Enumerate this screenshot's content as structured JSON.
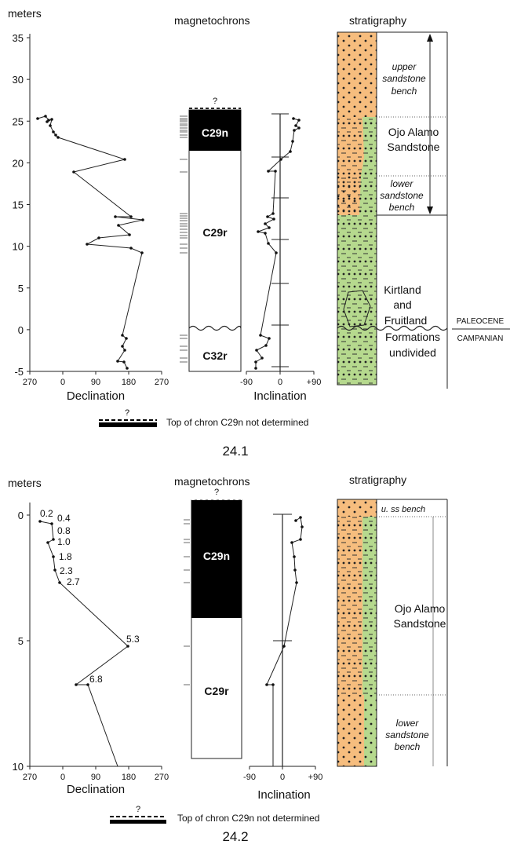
{
  "figure1": {
    "caption": "24.1",
    "header_meters": "meters",
    "header_magneto": "magnetochrons",
    "header_strat": "stratigraphy",
    "y_ticks": [
      "35",
      "30",
      "25",
      "20",
      "15",
      "10",
      "5",
      "0",
      "-5"
    ],
    "decl_ticks": [
      "270",
      "0",
      "90",
      "180",
      "270"
    ],
    "decl_label": "Declination",
    "incl_ticks": [
      "-90",
      "0",
      "+90"
    ],
    "incl_label": "Inclination",
    "chron_labels": [
      "C29n",
      "C29r",
      "C32r"
    ],
    "question_mark": "?",
    "legend_text": "Top of chron C29n not determined",
    "strat_labels": [
      "upper",
      "sandstone",
      "bench",
      "Ojo Alamo",
      "Sandstone",
      "lower",
      "sandstone",
      "bench",
      "Kirtland",
      "and",
      "Fruitland",
      "Formations",
      "undivided"
    ],
    "boundary_upper": "PALEOCENE",
    "boundary_lower": "CAMPANIAN"
  },
  "figure2": {
    "caption": "24.2",
    "header_meters": "meters",
    "header_magneto": "magnetochrons",
    "header_strat": "stratigraphy",
    "y_ticks": [
      "0",
      "5",
      "10"
    ],
    "decl_ticks": [
      "270",
      "0",
      "90",
      "180",
      "270"
    ],
    "decl_label": "Declination",
    "incl_ticks": [
      "-90",
      "0",
      "+90"
    ],
    "incl_label": "Inclination",
    "chron_labels": [
      "C29n",
      "C29r"
    ],
    "question_mark": "?",
    "legend_text": "Top of chron C29n not determined",
    "point_labels": [
      "0.2",
      "0.4",
      "0.8",
      "1.0",
      "1.8",
      "2.3",
      "2.7",
      "5.3",
      "6.8"
    ],
    "strat_labels": [
      "u. ss bench",
      "Ojo Alamo",
      "Sandstone",
      "lower",
      "sandstone",
      "bench"
    ]
  },
  "colors": {
    "sand": "#f6bd7e",
    "green": "#b6d98e",
    "chron": "#000000"
  }
}
